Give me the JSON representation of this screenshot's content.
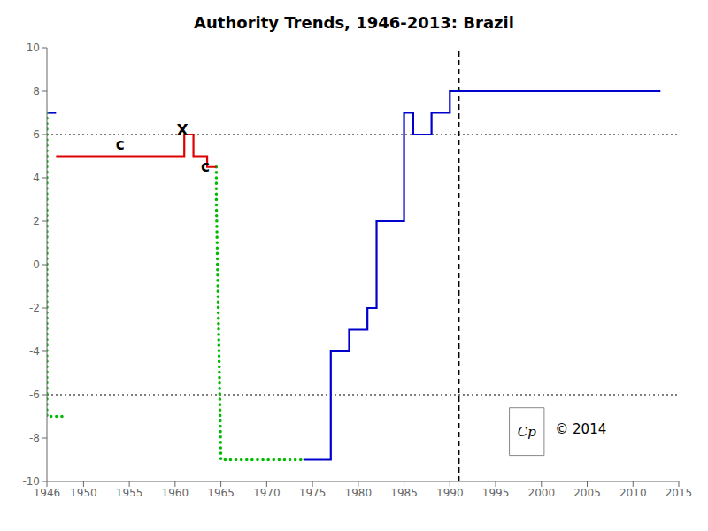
{
  "chart_data": {
    "type": "line",
    "title": "Authority Trends, 1946-2013: Brazil",
    "xlim": [
      1946,
      2015
    ],
    "ylim": [
      -10,
      10
    ],
    "xticks": [
      1946,
      1950,
      1955,
      1960,
      1965,
      1970,
      1975,
      1980,
      1985,
      1990,
      1995,
      2000,
      2005,
      2010,
      2015
    ],
    "yticks": [
      -10,
      -8,
      -6,
      -4,
      -2,
      0,
      2,
      4,
      6,
      8,
      10
    ],
    "grid": false,
    "hlines": [
      {
        "y": 6,
        "line_style": "dotted",
        "color": "#000000"
      },
      {
        "y": -6,
        "line_style": "dotted",
        "color": "#000000"
      }
    ],
    "vlines": [
      {
        "x": 1991,
        "line_style": "dashed",
        "color": "#000000"
      }
    ],
    "series": [
      {
        "color": "#0000cc",
        "line_style": "solid",
        "x": [
          1946,
          1947
        ],
        "values": [
          7,
          7
        ]
      },
      {
        "color": "#0000cc",
        "line_style": "solid",
        "x": [
          1974,
          1974,
          1977,
          1977,
          1979,
          1979,
          1981,
          1981,
          1982,
          1982,
          1985,
          1985,
          1986,
          1986,
          1988,
          1988,
          1990,
          1990,
          2013
        ],
        "values": [
          -9,
          -9,
          -9,
          -4,
          -4,
          -3,
          -3,
          -2,
          -2,
          2,
          2,
          7,
          7,
          6,
          6,
          7,
          7,
          8,
          8
        ]
      },
      {
        "color": "#00bb00",
        "line_style": "dotted",
        "x": [
          1946,
          1946,
          1948
        ],
        "values": [
          7,
          -7,
          -7
        ]
      },
      {
        "color": "#00bb00",
        "line_style": "dotted",
        "x": [
          1964.5,
          1964.5,
          1965,
          1974
        ],
        "values": [
          4.5,
          3,
          -9,
          -9
        ]
      },
      {
        "color": "#dd0000",
        "line_style": "solid",
        "x": [
          1947,
          1961,
          1961,
          1962,
          1962,
          1963.5,
          1963.5,
          1964.5
        ],
        "values": [
          5,
          5,
          6,
          6,
          5,
          5,
          4.5,
          4.5
        ]
      }
    ],
    "annotations": [
      {
        "text": "c",
        "x": 1954,
        "y": 5.55,
        "bold": true
      },
      {
        "text": "X",
        "x": 1960.8,
        "y": 6.2,
        "bold": true
      },
      {
        "text": "c",
        "x": 1963.3,
        "y": 4.55,
        "bold": true
      },
      {
        "text": "Cp",
        "x": 1998.4,
        "y": -7.7,
        "italic": true,
        "box": {
          "x": [
            1996.5,
            2000.3
          ],
          "y": [
            -8.8,
            -6.6
          ],
          "color": "#888888"
        }
      },
      {
        "text": "© 2014",
        "x": 2001.5,
        "y": -7.6,
        "align": "left"
      }
    ]
  }
}
